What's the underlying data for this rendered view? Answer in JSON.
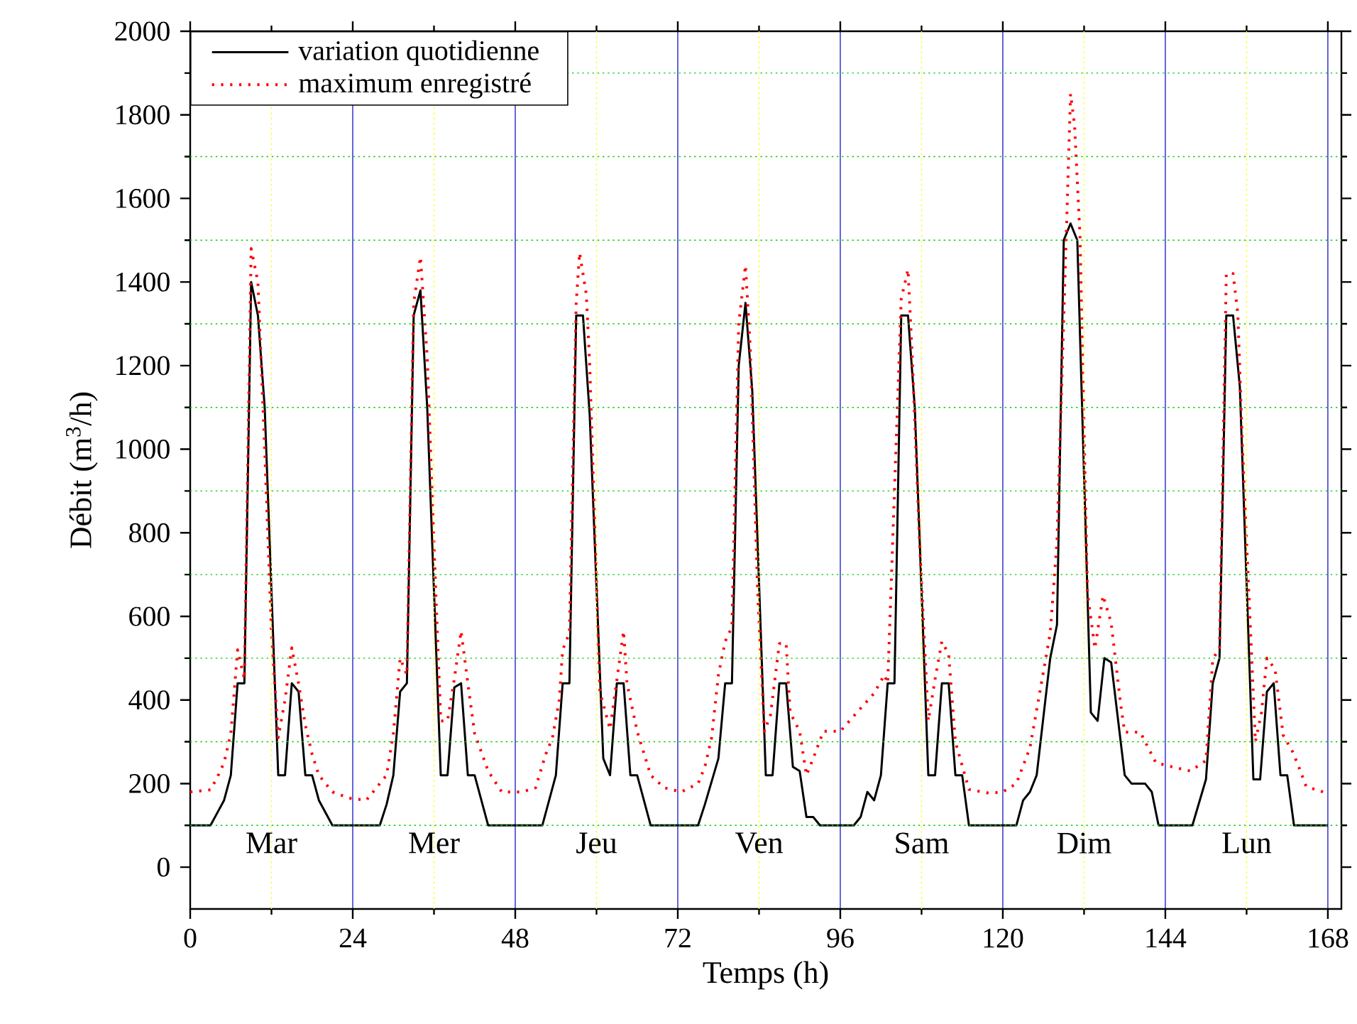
{
  "chart_data": {
    "type": "line",
    "xlabel": "Temps (h)",
    "ylabel": "Débit (m$^{3}$/h)",
    "xlim": [
      0,
      170
    ],
    "ylim": [
      -100,
      2000
    ],
    "xticks": [
      0,
      24,
      48,
      72,
      96,
      120,
      144,
      168
    ],
    "yticks": [
      0,
      200,
      400,
      600,
      800,
      1000,
      1200,
      1400,
      1600,
      1800,
      2000
    ],
    "grid": true,
    "legend": "top left",
    "marker": "none",
    "series": [
      {
        "name": "variation quotidienne",
        "color": "#000000",
        "line_style": "solid",
        "x": [
          0,
          3,
          4,
          5,
          6,
          7,
          8,
          9,
          10,
          11,
          13,
          14,
          15,
          16,
          17,
          18,
          19,
          21,
          28,
          29,
          30,
          31,
          32,
          33,
          34,
          35,
          37,
          38,
          39,
          40,
          41,
          42,
          44,
          52,
          54,
          55,
          56,
          57,
          58,
          59,
          61,
          62,
          63,
          64,
          65,
          66,
          68,
          75,
          76,
          78,
          79,
          80,
          81,
          82,
          83,
          85,
          86,
          87,
          88,
          89,
          90,
          91,
          92,
          93,
          98,
          99,
          100,
          101,
          102,
          103,
          104,
          105,
          106,
          107,
          109,
          110,
          111,
          112,
          113,
          114,
          115,
          122,
          123,
          124,
          125,
          127,
          128,
          129,
          130,
          131,
          133,
          134,
          135,
          136,
          138,
          139,
          141,
          142,
          143,
          148,
          150,
          151,
          152,
          153,
          154,
          155,
          157,
          158,
          159,
          160,
          161,
          162,
          163,
          168
        ],
        "values": [
          100,
          100,
          130,
          160,
          220,
          440,
          440,
          1400,
          1320,
          1100,
          220,
          220,
          440,
          420,
          220,
          220,
          160,
          100,
          100,
          150,
          220,
          420,
          440,
          1320,
          1380,
          1100,
          220,
          220,
          430,
          440,
          220,
          220,
          100,
          100,
          220,
          440,
          440,
          1320,
          1320,
          1080,
          260,
          220,
          440,
          440,
          220,
          220,
          100,
          100,
          150,
          260,
          440,
          440,
          1200,
          1350,
          1140,
          220,
          220,
          440,
          440,
          240,
          230,
          120,
          120,
          100,
          100,
          120,
          180,
          160,
          220,
          440,
          440,
          1320,
          1320,
          1100,
          220,
          220,
          440,
          440,
          220,
          220,
          100,
          100,
          160,
          180,
          220,
          500,
          580,
          1500,
          1540,
          1500,
          370,
          350,
          500,
          490,
          220,
          200,
          200,
          180,
          100,
          100,
          210,
          440,
          500,
          1320,
          1320,
          1150,
          210,
          210,
          420,
          440,
          220,
          220,
          100,
          100
        ]
      },
      {
        "name": "maximum enregistré",
        "color": "#ff0000",
        "line_style": "dotted",
        "x": [
          0,
          3,
          4,
          5,
          6,
          7,
          8,
          9,
          10,
          11,
          12,
          13,
          14,
          15,
          16,
          17,
          18,
          19,
          20,
          21,
          23.5,
          26,
          27,
          28,
          29,
          30,
          31,
          32,
          33,
          34,
          35,
          36,
          37,
          38,
          39,
          40,
          41,
          42,
          44,
          46,
          49,
          51,
          52.5,
          53.5,
          54.5,
          55,
          56,
          57,
          57.5,
          58.5,
          59,
          60.5,
          62,
          64,
          64.5,
          66,
          68,
          70,
          72.5,
          75,
          76,
          77,
          78,
          79,
          80,
          81,
          82,
          82.7,
          83.8,
          84.8,
          85.7,
          87,
          88,
          88.6,
          90,
          91,
          92,
          93.5,
          96,
          99,
          101,
          102.5,
          103,
          105,
          106,
          106.6,
          107.7,
          109,
          110,
          111,
          112,
          113,
          115,
          118,
          120,
          122,
          124,
          125,
          127,
          128,
          130,
          130.6,
          131.4,
          132.5,
          133.6,
          134.8,
          136,
          137.4,
          138,
          140.3,
          142.6,
          145,
          147.7,
          150,
          151,
          152,
          153,
          154,
          154.7,
          155.4,
          157.3,
          158.2,
          159,
          160.2,
          161.4,
          162.8,
          163.8,
          164.8,
          167.3,
          168
        ],
        "values": [
          180,
          185,
          215,
          250,
          320,
          520,
          450,
          1480,
          1400,
          1000,
          560,
          310,
          400,
          525,
          440,
          340,
          270,
          220,
          200,
          180,
          165,
          160,
          180,
          200,
          220,
          320,
          500,
          460,
          1350,
          1460,
          1220,
          770,
          350,
          350,
          450,
          565,
          440,
          320,
          230,
          180,
          180,
          190,
          270,
          310,
          400,
          520,
          560,
          1350,
          1470,
          1370,
          1200,
          420,
          330,
          565,
          440,
          325,
          220,
          190,
          180,
          200,
          240,
          310,
          460,
          540,
          575,
          1300,
          1440,
          1245,
          655,
          325,
          365,
          535,
          535,
          370,
          325,
          220,
          260,
          325,
          325,
          380,
          416,
          460,
          440,
          1360,
          1430,
          1230,
          780,
          350,
          450,
          540,
          510,
          300,
          186,
          177,
          180,
          200,
          285,
          376,
          560,
          780,
          1850,
          1775,
          1508,
          657,
          523,
          650,
          585,
          390,
          323,
          323,
          250,
          240,
          230,
          255,
          497,
          525,
          1420,
          1420,
          1325,
          1000,
          300,
          370,
          500,
          474,
          316,
          276,
          236,
          193,
          180,
          180
        ]
      }
    ],
    "ref_lines": [
      {
        "axis": "x",
        "value": 12,
        "color": "#ffff00",
        "line_style": "dotted"
      },
      {
        "axis": "x",
        "value": 36,
        "color": "#ffff00",
        "line_style": "dotted"
      },
      {
        "axis": "x",
        "value": 60,
        "color": "#ffff00",
        "line_style": "dotted"
      },
      {
        "axis": "x",
        "value": 84,
        "color": "#ffff00",
        "line_style": "dotted"
      },
      {
        "axis": "x",
        "value": 108,
        "color": "#ffff00",
        "line_style": "dotted"
      },
      {
        "axis": "x",
        "value": 132,
        "color": "#ffff00",
        "line_style": "dotted"
      },
      {
        "axis": "x",
        "value": 156,
        "color": "#ffff00",
        "line_style": "dotted"
      },
      {
        "axis": "y",
        "value": 100,
        "color": "#00cc00",
        "line_style": "dotted"
      },
      {
        "axis": "y",
        "value": 300,
        "color": "#00cc00",
        "line_style": "dotted"
      },
      {
        "axis": "y",
        "value": 500,
        "color": "#00cc00",
        "line_style": "dotted"
      },
      {
        "axis": "y",
        "value": 700,
        "color": "#00cc00",
        "line_style": "dotted"
      },
      {
        "axis": "y",
        "value": 900,
        "color": "#00cc00",
        "line_style": "dotted"
      },
      {
        "axis": "y",
        "value": 1100,
        "color": "#00cc00",
        "line_style": "dotted"
      },
      {
        "axis": "y",
        "value": 1300,
        "color": "#00cc00",
        "line_style": "dotted"
      },
      {
        "axis": "y",
        "value": 1500,
        "color": "#00cc00",
        "line_style": "dotted"
      },
      {
        "axis": "y",
        "value": 1700,
        "color": "#00cc00",
        "line_style": "dotted"
      },
      {
        "axis": "y",
        "value": 1900,
        "color": "#00cc00",
        "line_style": "dotted"
      }
    ],
    "annotations": [
      "Mar",
      "Mer",
      "Jeu",
      "Ven",
      "Sam",
      "Dim",
      "Lun"
    ]
  }
}
